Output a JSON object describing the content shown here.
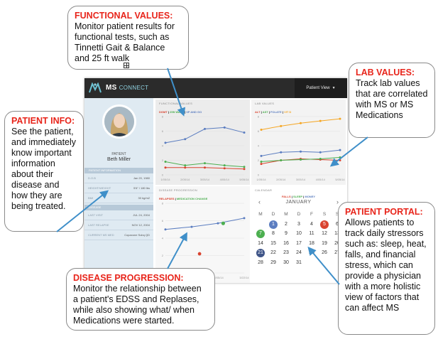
{
  "app": {
    "brand_bold": "MS",
    "brand_light": "CONNECT",
    "patient_view": "Patient View",
    "sidebar": {
      "patient_label": "PATIENT",
      "patient_name": "Beth Miller",
      "info_header": "PATIENT INFORMATION",
      "info_rows": [
        {
          "label": "D.O.B",
          "value": "Jan 20, 1980"
        },
        {
          "label": "HEIGHT/WEIGHT",
          "value": "5'6\" / 180 lbs"
        },
        {
          "label": "BMI",
          "value": "30 kg/m2"
        }
      ],
      "disease_header": "DISEASE",
      "disease_rows": [
        {
          "label": "LAST VISIT",
          "value": "JUL 24, 2004"
        },
        {
          "label": "LAST RELAPSE",
          "value": "NOV 12, 2004"
        },
        {
          "label": "CURRENT MS MED",
          "value": "Copaxone Subq QD"
        }
      ]
    },
    "panels": {
      "functional": {
        "title": "FUNCTIONAL VALUES",
        "legend": [
          {
            "label": "DGMT",
            "color": "#d9432f"
          },
          {
            "label": "25ft WALK",
            "color": "#4caf50"
          },
          {
            "label": "6P AND GO",
            "color": "#5b7dc0"
          }
        ]
      },
      "lab": {
        "title": "LAB VALUES",
        "legend": [
          {
            "label": "ALT",
            "color": "#d9432f"
          },
          {
            "label": "AST",
            "color": "#4caf50"
          },
          {
            "label": "FOLATE",
            "color": "#5b7dc0"
          },
          {
            "label": "VIT D",
            "color": "#f5a623"
          }
        ]
      },
      "disease": {
        "title": "DISEASE PROGRESSION",
        "legend": [
          {
            "label": "RELAPSES",
            "color": "#d9432f"
          },
          {
            "label": "MEDICATION CHANGE",
            "color": "#4caf50"
          }
        ]
      },
      "calendar": {
        "title": "CALENDAR",
        "legend": [
          {
            "label": "FALLS",
            "color": "#d9432f"
          },
          {
            "label": "SLEEP",
            "color": "#4caf50"
          },
          {
            "label": "MONEY",
            "color": "#5b7dc0"
          }
        ],
        "month": "JANUARY",
        "prev": "‹",
        "next": "›",
        "weekdays": [
          "M",
          "D",
          "M",
          "D",
          "F",
          "S",
          "S"
        ],
        "weeks": [
          [
            "",
            "1",
            "2",
            "3",
            "4",
            "5",
            "6"
          ],
          [
            "7",
            "8",
            "9",
            "10",
            "11",
            "12",
            "13"
          ],
          [
            "14",
            "15",
            "16",
            "17",
            "18",
            "19",
            "20"
          ],
          [
            "21",
            "22",
            "23",
            "24",
            "25",
            "26",
            "27"
          ],
          [
            "28",
            "29",
            "30",
            "31",
            "",
            "",
            ""
          ]
        ],
        "marked_days": [
          {
            "day": "1",
            "kind": "money"
          },
          {
            "day": "5",
            "kind": "falls"
          },
          {
            "day": "7",
            "kind": "sleep"
          },
          {
            "day": "21",
            "kind": "money"
          }
        ]
      }
    }
  },
  "chart_data": [
    {
      "type": "line",
      "title": "FUNCTIONAL VALUES",
      "x": [
        "1/05/14",
        "2/05/14",
        "3/05/14",
        "4/05/14",
        "5/05/14"
      ],
      "ylim": [
        0,
        8
      ],
      "yticks": [
        "8",
        "6",
        "4",
        "2",
        "0"
      ],
      "series": [
        {
          "name": "DGMT",
          "color": "#d9432f",
          "values": [
            1,
            1,
            1,
            0.9,
            0.8
          ]
        },
        {
          "name": "25ft WALK",
          "color": "#4caf50",
          "values": [
            1.8,
            1.3,
            1.6,
            1.3,
            1.1
          ]
        },
        {
          "name": "6P AND GO",
          "color": "#5b7dc0",
          "values": [
            4.4,
            4.9,
            6.3,
            6.5,
            5.8
          ]
        }
      ]
    },
    {
      "type": "line",
      "title": "LAB VALUES",
      "x": [
        "1/05/14",
        "2/05/14",
        "3/05/14",
        "4/05/14",
        "5/05/14"
      ],
      "ylim": [
        0,
        8
      ],
      "yticks": [
        "8",
        "6",
        "4",
        "2",
        "0"
      ],
      "series": [
        {
          "name": "ALT",
          "color": "#d9432f",
          "values": [
            1.5,
            2.0,
            2.2,
            2.1,
            2.0
          ]
        },
        {
          "name": "AST",
          "color": "#4caf50",
          "values": [
            1.8,
            2.0,
            2.1,
            2.2,
            2.4
          ]
        },
        {
          "name": "FOLATE",
          "color": "#5b7dc0",
          "values": [
            2.6,
            3.1,
            3.2,
            3.1,
            3.4
          ]
        },
        {
          "name": "VIT D",
          "color": "#f5a623",
          "values": [
            6.2,
            6.7,
            7.1,
            7.4,
            7.7
          ]
        }
      ]
    },
    {
      "type": "line",
      "title": "DISEASE PROGRESSION",
      "x": [
        "1/05/14",
        "2/05/14",
        "12/05/14",
        "3/22/14"
      ],
      "ylim": [
        0,
        8
      ],
      "yticks": [
        "8",
        "6",
        "4",
        "2",
        "0"
      ],
      "series": [
        {
          "name": "EDSS",
          "color": "#5b7dc0",
          "values": [
            5.0,
            5.3,
            5.7,
            6.3
          ]
        }
      ],
      "relapses": [
        {
          "x_index": 1.3,
          "y": 2.2
        }
      ],
      "medication_changes": [
        {
          "x_index": 2.2,
          "y": 5.7
        }
      ]
    }
  ],
  "callouts": {
    "functional": {
      "title": "FUNCTIONAL VALUES:",
      "body": "Monitor patient results for functional tests, such as Tinnetti Gait & Balance and 25 ft walk"
    },
    "lab": {
      "title": "LAB VALUES:",
      "body": "Track lab values that are correlated with MS or MS Medications"
    },
    "info": {
      "title": "PATIENT INFO:",
      "body": "See the patient, and immediately know important information about their disease and how they are being treated."
    },
    "disease": {
      "title": "DISEASE PROGRESSION:",
      "body": "Monitor the relationship between a patient's EDSS and Replases, while also showing what/ when Medications were started."
    },
    "portal": {
      "title": "PATIENT PORTAL:",
      "body": "Allows patients to track daily stressors such as: sleep, heat, falls, and financial stress, which can provide a physician with a more holistic view of factors that can affect MS"
    }
  },
  "arrow_color": "#3f8fc9"
}
